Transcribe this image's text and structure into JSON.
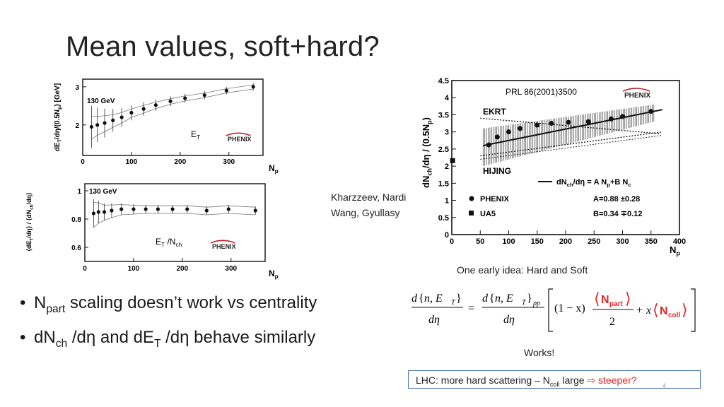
{
  "slide": {
    "title": "Mean values, soft+hard?",
    "page_number": "4"
  },
  "bullets": [
    {
      "main": "N",
      "sub": "part",
      "rest": " scaling doesn’t work vs centrality"
    },
    {
      "a": "dN",
      "a_sub": "ch",
      "b": " /dη and dE",
      "b_sub": "T",
      "c": " /dη behave similarly"
    }
  ],
  "citation": {
    "line1": "Kharzzeev, Nardi",
    "line2": "Wang, Gyullasy"
  },
  "early_idea": "One early idea: Hard and Soft",
  "works": "Works!",
  "lhc_box": {
    "pre": "LHC: more hard scattering – N",
    "sub": "coll",
    "post": " large ",
    "arrow": "⇨",
    "red": " steeper?"
  },
  "formula": {
    "d": "d",
    "n_et": "n, E",
    "T": "T",
    "pp": "pp",
    "deta": "dη",
    "one_minus_x": "(1 − x)",
    "npart": "N",
    "npart_sub": "part",
    "two": "2",
    "x": "x",
    "ncoll": "N",
    "ncoll_sub": "coll",
    "eq": "=",
    "plus": "+"
  },
  "chart_data": [
    {
      "type": "scatter",
      "panel": "upper-left",
      "annotation": "130 GeV",
      "label": "E_T",
      "logo": "PHENIX",
      "ylabel": "dE_T/dη/(0.5N_p) [GeV]",
      "xlabel": "N_p",
      "xlim": [
        0,
        370
      ],
      "ylim": [
        1.2,
        3.2
      ],
      "xticks": [
        0,
        100,
        200,
        300
      ],
      "yticks": [
        2,
        3
      ],
      "series": [
        {
          "x": [
            18,
            30,
            45,
            62,
            80,
            100,
            125,
            150,
            180,
            210,
            250,
            295,
            350
          ],
          "y": [
            1.95,
            2.0,
            2.05,
            2.12,
            2.2,
            2.32,
            2.42,
            2.52,
            2.62,
            2.7,
            2.78,
            2.9,
            3.0
          ],
          "err": [
            0.55,
            0.45,
            0.38,
            0.3,
            0.25,
            0.2,
            0.18,
            0.15,
            0.13,
            0.12,
            0.11,
            0.1,
            0.1
          ]
        }
      ]
    },
    {
      "type": "scatter",
      "panel": "lower-left",
      "annotation": "130 GeV",
      "label": "E_T /N_ch",
      "logo": "PHENIX",
      "ylabel": "⟨dE_T/dη⟩ / ⟨dN_ch/dη⟩",
      "xlabel": "N_p",
      "xlim": [
        0,
        370
      ],
      "ylim": [
        0.5,
        1.05
      ],
      "xticks": [
        0,
        100,
        200,
        300
      ],
      "yticks": [
        0.6,
        0.8,
        1
      ],
      "series": [
        {
          "x": [
            18,
            28,
            40,
            55,
            75,
            100,
            125,
            150,
            180,
            210,
            250,
            295,
            350
          ],
          "y": [
            0.84,
            0.85,
            0.85,
            0.86,
            0.87,
            0.87,
            0.87,
            0.87,
            0.87,
            0.87,
            0.86,
            0.87,
            0.86
          ],
          "err": [
            0.1,
            0.08,
            0.06,
            0.05,
            0.04,
            0.035,
            0.03,
            0.03,
            0.03,
            0.03,
            0.03,
            0.03,
            0.03
          ]
        }
      ]
    },
    {
      "type": "scatter",
      "panel": "right",
      "reference": "PRL 86(2001)3500",
      "logo": "PHENIX",
      "ylabel": "dN_ch/dη / (0.5N_p)",
      "xlabel": "N_p",
      "xlim": [
        0,
        400
      ],
      "ylim": [
        0,
        4.5
      ],
      "xticks": [
        0,
        50,
        100,
        150,
        200,
        250,
        300,
        350,
        400
      ],
      "yticks": [
        0,
        0.5,
        1,
        1.5,
        2,
        2.5,
        3,
        3.5,
        4,
        4.5
      ],
      "model_labels": [
        "EKRT",
        "HIJING"
      ],
      "fit_label": "dN_ch/dη = A N_p+B N_c",
      "legend": [
        {
          "marker": "circle",
          "name": "PHENIX",
          "param": "A=0.88 ±0.28"
        },
        {
          "marker": "square",
          "name": "UA5",
          "param": "B=0.34 ∓0.12"
        }
      ],
      "series": [
        {
          "name": "PHENIX",
          "x": [
            65,
            80,
            100,
            120,
            150,
            175,
            205,
            240,
            280,
            300,
            350
          ],
          "y": [
            2.62,
            2.85,
            3.0,
            3.1,
            3.2,
            3.25,
            3.28,
            3.3,
            3.38,
            3.45,
            3.6
          ]
        },
        {
          "name": "UA5",
          "x": [
            2
          ],
          "y": [
            2.15
          ]
        }
      ]
    }
  ]
}
